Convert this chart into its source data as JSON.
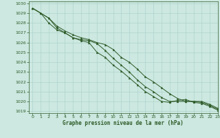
{
  "title": "Graphe pression niveau de la mer (hPa)",
  "bg_color": "#cce8e0",
  "grid_color": "#a8cfc8",
  "line_color": "#2d5a27",
  "xlim": [
    -0.5,
    23
  ],
  "ylim": [
    1018.8,
    1030.2
  ],
  "yticks": [
    1019,
    1020,
    1021,
    1022,
    1023,
    1024,
    1025,
    1026,
    1027,
    1028,
    1029,
    1030
  ],
  "xticks": [
    0,
    1,
    2,
    3,
    4,
    5,
    6,
    7,
    8,
    9,
    10,
    11,
    12,
    13,
    14,
    15,
    16,
    17,
    18,
    19,
    20,
    21,
    22,
    23
  ],
  "line1": [
    1029.5,
    1029.0,
    1028.5,
    1027.7,
    1027.2,
    1026.8,
    1026.5,
    1026.3,
    1026.0,
    1025.8,
    1025.3,
    1024.5,
    1024.0,
    1023.3,
    1022.5,
    1022.0,
    1021.4,
    1020.8,
    1020.3,
    1020.0,
    1020.0,
    1020.0,
    1019.7,
    1019.3
  ],
  "line2": [
    1029.5,
    1029.0,
    1028.5,
    1027.5,
    1027.0,
    1026.5,
    1026.3,
    1026.2,
    1025.9,
    1025.2,
    1024.4,
    1023.7,
    1023.0,
    1022.2,
    1021.5,
    1021.0,
    1020.4,
    1020.0,
    1020.0,
    1020.0,
    1020.0,
    1019.9,
    1019.6,
    1019.2
  ],
  "line3": [
    1029.5,
    1029.0,
    1028.0,
    1027.3,
    1027.0,
    1026.5,
    1026.2,
    1026.0,
    1025.0,
    1024.5,
    1023.7,
    1023.1,
    1022.4,
    1021.7,
    1021.0,
    1020.5,
    1020.0,
    1019.9,
    1020.1,
    1020.2,
    1019.9,
    1019.8,
    1019.5,
    1019.1
  ]
}
